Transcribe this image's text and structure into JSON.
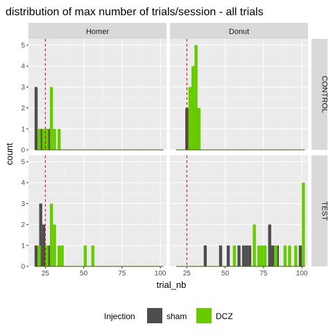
{
  "chart_data": {
    "type": "bar",
    "title": "distribution of max number of trials/session - all trials",
    "xlabel": "trial_nb",
    "ylabel": "count",
    "xlim": [
      14,
      104
    ],
    "ylim": [
      0,
      5.3
    ],
    "xticks": [
      25,
      50,
      75,
      100
    ],
    "xtick_labels": [
      "25",
      "50",
      "75",
      "100"
    ],
    "yticks": [
      0,
      1,
      2,
      3,
      4,
      5
    ],
    "ytick_labels": [
      "0",
      "1",
      "2",
      "3",
      "4",
      "5"
    ],
    "reference_line_x": 25,
    "grid": true,
    "facet_columns": [
      "Homer",
      "Donut"
    ],
    "facet_rows": [
      "CONTROL",
      "TEST"
    ],
    "legend": {
      "title": "Injection",
      "position": "bottom",
      "items": [
        {
          "label": "sham",
          "color": "#4d4d4d"
        },
        {
          "label": "DCZ",
          "color": "#66cc00"
        }
      ]
    },
    "panels": [
      {
        "column": "Homer",
        "row": "CONTROL",
        "bars": [
          {
            "x": 19,
            "series": "sham",
            "value": 3
          },
          {
            "x": 22,
            "series": "sham",
            "value": 1
          },
          {
            "x": 25,
            "series": "sham",
            "value": 1
          },
          {
            "x": 27,
            "series": "sham",
            "value": 1
          },
          {
            "x": 21,
            "series": "DCZ",
            "value": 1
          },
          {
            "x": 24,
            "series": "DCZ",
            "value": 1
          },
          {
            "x": 26,
            "series": "DCZ",
            "value": 1
          },
          {
            "x": 29,
            "series": "DCZ",
            "value": 3
          },
          {
            "x": 31,
            "series": "DCZ",
            "value": 1
          },
          {
            "x": 34,
            "series": "DCZ",
            "value": 1
          }
        ]
      },
      {
        "column": "Donut",
        "row": "CONTROL",
        "bars": [
          {
            "x": 25,
            "series": "sham",
            "value": 2
          },
          {
            "x": 29,
            "series": "sham",
            "value": 2
          },
          {
            "x": 32,
            "series": "sham",
            "value": 2
          },
          {
            "x": 27,
            "series": "DCZ",
            "value": 3
          },
          {
            "x": 29,
            "series": "DCZ",
            "value": 4
          },
          {
            "x": 31,
            "series": "DCZ",
            "value": 5
          },
          {
            "x": 33,
            "series": "DCZ",
            "value": 2
          }
        ]
      },
      {
        "column": "Homer",
        "row": "TEST",
        "bars": [
          {
            "x": 19,
            "series": "sham",
            "value": 1
          },
          {
            "x": 22,
            "series": "sham",
            "value": 3
          },
          {
            "x": 24,
            "series": "sham",
            "value": 2
          },
          {
            "x": 27,
            "series": "sham",
            "value": 1
          },
          {
            "x": 21,
            "series": "DCZ",
            "value": 1
          },
          {
            "x": 26,
            "series": "DCZ",
            "value": 1
          },
          {
            "x": 29,
            "series": "DCZ",
            "value": 3
          },
          {
            "x": 31,
            "series": "DCZ",
            "value": 2
          },
          {
            "x": 34,
            "series": "DCZ",
            "value": 1
          },
          {
            "x": 36,
            "series": "DCZ",
            "value": 1
          },
          {
            "x": 51,
            "series": "DCZ",
            "value": 1
          },
          {
            "x": 56,
            "series": "DCZ",
            "value": 1
          }
        ]
      },
      {
        "column": "Donut",
        "row": "TEST",
        "bars": [
          {
            "x": 37,
            "series": "sham",
            "value": 1
          },
          {
            "x": 47,
            "series": "sham",
            "value": 1
          },
          {
            "x": 52,
            "series": "sham",
            "value": 1
          },
          {
            "x": 59,
            "series": "sham",
            "value": 1
          },
          {
            "x": 62,
            "series": "sham",
            "value": 1
          },
          {
            "x": 64,
            "series": "sham",
            "value": 1
          },
          {
            "x": 66,
            "series": "sham",
            "value": 1
          },
          {
            "x": 79,
            "series": "sham",
            "value": 2
          },
          {
            "x": 81,
            "series": "sham",
            "value": 1
          },
          {
            "x": 84,
            "series": "sham",
            "value": 1
          },
          {
            "x": 99,
            "series": "sham",
            "value": 1
          },
          {
            "x": 56,
            "series": "DCZ",
            "value": 1
          },
          {
            "x": 69,
            "series": "DCZ",
            "value": 2
          },
          {
            "x": 72,
            "series": "DCZ",
            "value": 1
          },
          {
            "x": 74,
            "series": "DCZ",
            "value": 1
          },
          {
            "x": 76,
            "series": "DCZ",
            "value": 1
          },
          {
            "x": 83,
            "series": "DCZ",
            "value": 1
          },
          {
            "x": 89,
            "series": "DCZ",
            "value": 1
          },
          {
            "x": 92,
            "series": "DCZ",
            "value": 1
          },
          {
            "x": 96,
            "series": "DCZ",
            "value": 1
          },
          {
            "x": 101,
            "series": "DCZ",
            "value": 4
          }
        ]
      }
    ]
  }
}
